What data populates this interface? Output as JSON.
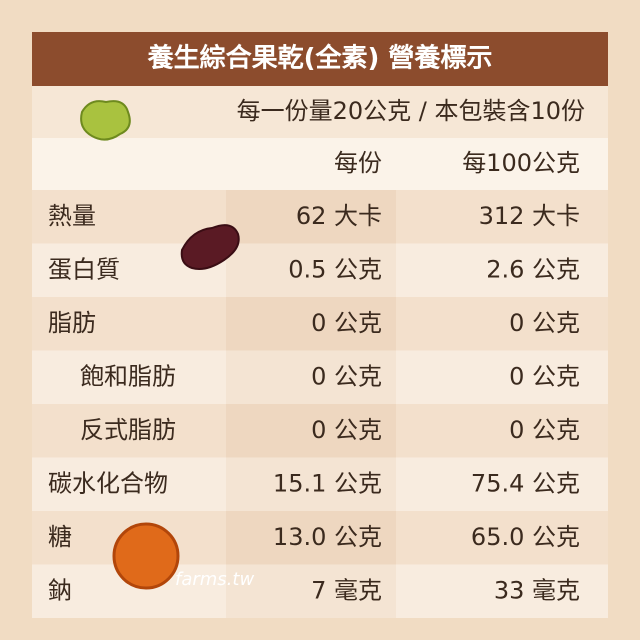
{
  "header": {
    "title": "養生綜合果乾(全素) 營養標示"
  },
  "serving": "每一份量20公克 / 本包裝含10份",
  "table": {
    "columns": [
      "每份",
      "每100公克"
    ],
    "rows": [
      [
        "熱量",
        "62 大卡",
        "312 大卡"
      ],
      [
        "蛋白質",
        "0.5 公克",
        "2.6 公克"
      ],
      [
        "脂肪",
        "0 公克",
        "0 公克"
      ],
      [
        "飽和脂肪",
        "0 公克",
        "0 公克"
      ],
      [
        "反式脂肪",
        "0 公克",
        "0 公克"
      ],
      [
        "碳水化合物",
        "15.1 公克",
        "75.4 公克"
      ],
      [
        "糖",
        "13.0 公克",
        "65.0 公克"
      ],
      [
        "鈉",
        "7 毫克",
        "33 毫克"
      ]
    ],
    "indented": [
      3,
      4
    ]
  },
  "watermark": "farms.tw"
}
